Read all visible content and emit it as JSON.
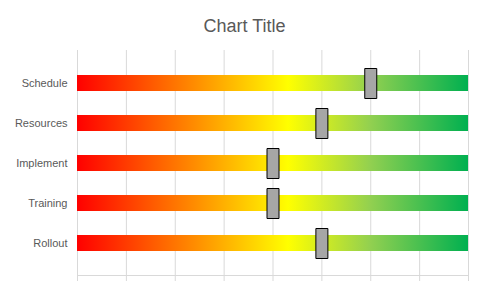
{
  "chart_data": {
    "type": "bar",
    "title": "Chart Title",
    "orientation": "horizontal",
    "categories": [
      "Schedule",
      "Resources",
      "Implement",
      "Training",
      "Rollout"
    ],
    "values": [
      6,
      5,
      4,
      4,
      5
    ],
    "marker": "square",
    "color": "#a6a6a6",
    "xlim": [
      0,
      8
    ],
    "xticks": [
      0,
      1,
      2,
      3,
      4,
      5,
      6,
      7,
      8
    ],
    "grid": true,
    "tick_labels": "y"
  }
}
